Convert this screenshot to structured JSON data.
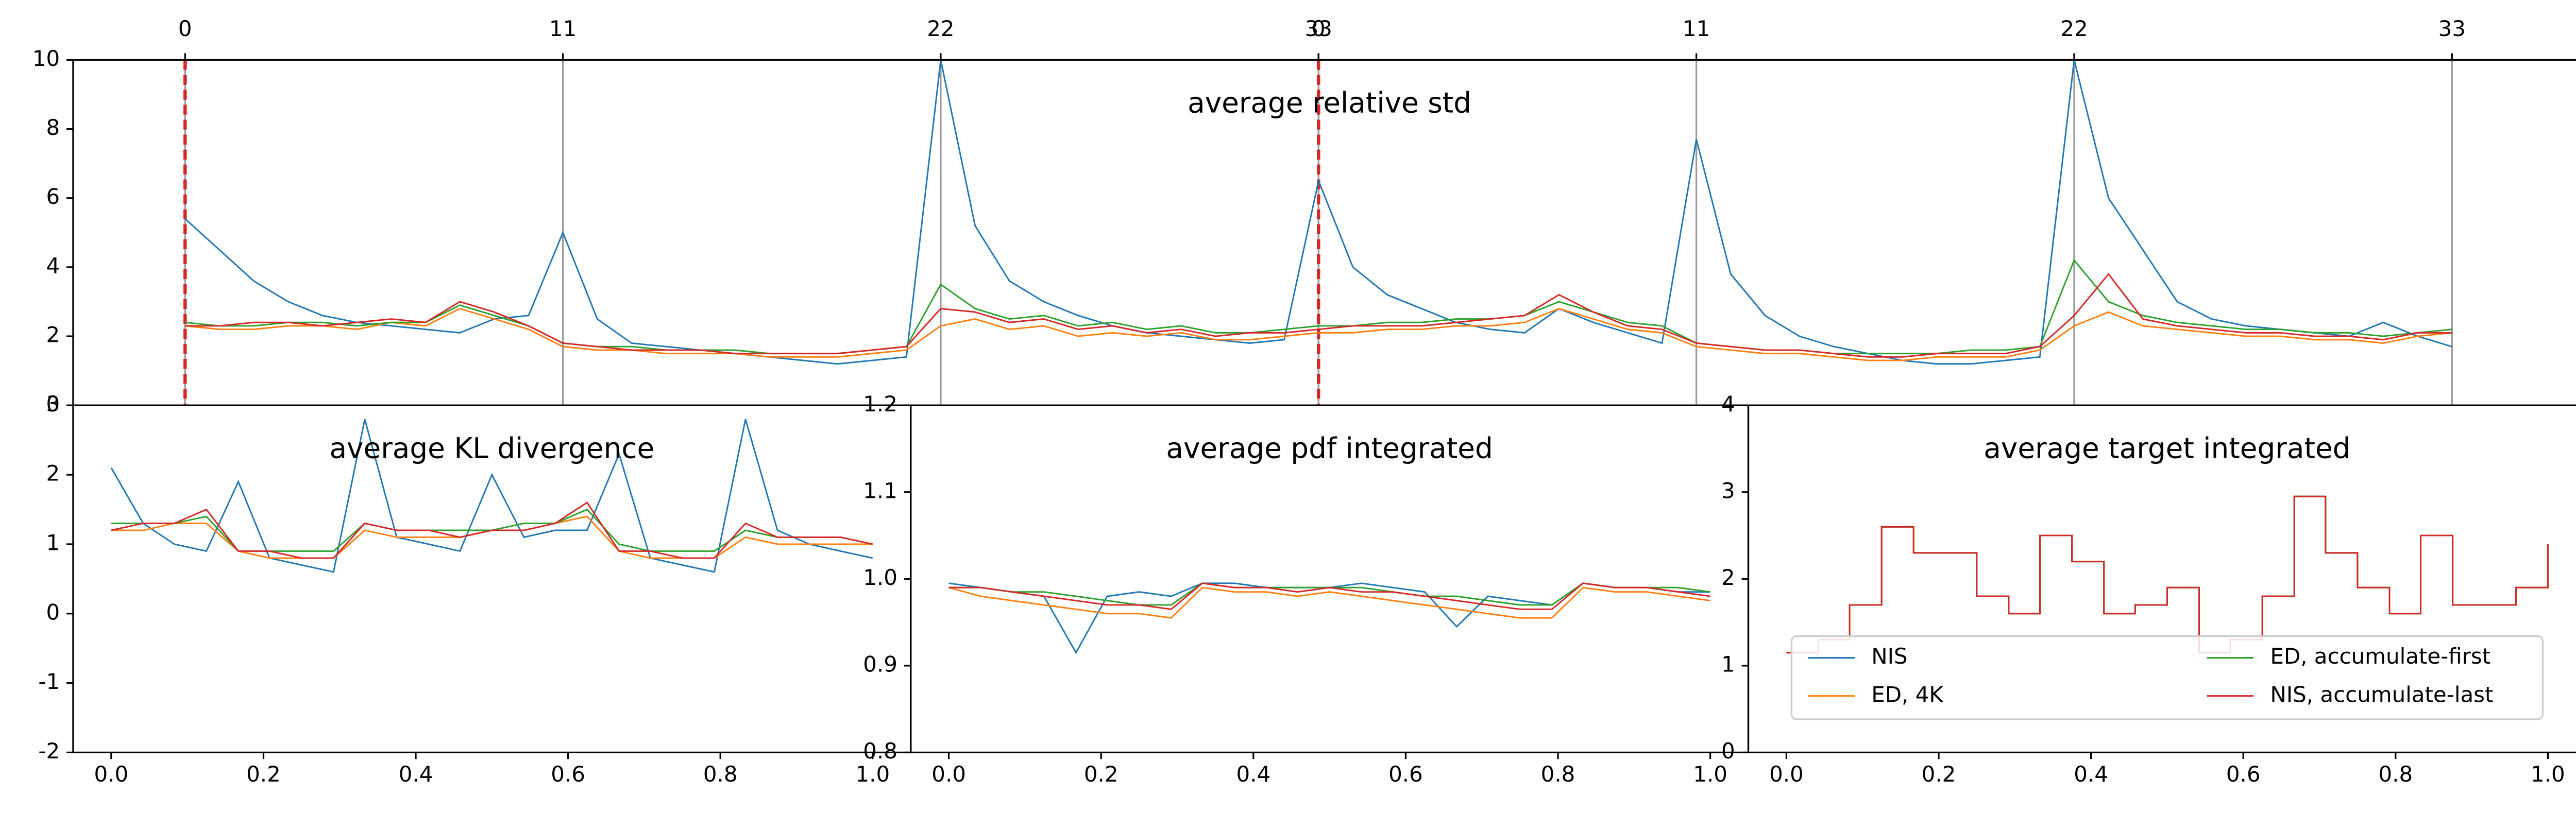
{
  "chart_data": [
    {
      "type": "line",
      "title": "average relative std",
      "xaxis_position": "top",
      "grid": "x",
      "vlines": [
        0,
        33
      ],
      "vline_color": "#d62728",
      "xlim": [
        -3.26,
        69.9
      ],
      "ylim": [
        0,
        10
      ],
      "xticks": [
        0,
        11,
        22,
        33,
        {
          "value": 33,
          "label": "0"
        },
        {
          "value": 44,
          "label": "11"
        },
        {
          "value": 55,
          "label": "22"
        },
        {
          "value": 66,
          "label": "33"
        }
      ],
      "yticks": [
        0,
        2,
        4,
        6,
        8,
        10
      ],
      "x": [
        0,
        1,
        2,
        3,
        4,
        5,
        6,
        7,
        8,
        9,
        10,
        11,
        12,
        13,
        14,
        15,
        16,
        17,
        18,
        19,
        20,
        21,
        22,
        23,
        24,
        25,
        26,
        27,
        28,
        29,
        30,
        31,
        32,
        33,
        34,
        35,
        36,
        37,
        38,
        39,
        40,
        41,
        42,
        43,
        44,
        45,
        46,
        47,
        48,
        49,
        50,
        51,
        52,
        53,
        54,
        55,
        56,
        57,
        58,
        59,
        60,
        61,
        62,
        63,
        64,
        65,
        66
      ],
      "series": [
        {
          "name": "NIS",
          "color": "#1f77b4",
          "values": [
            5.4,
            4.5,
            3.6,
            3.0,
            2.6,
            2.4,
            2.3,
            2.2,
            2.1,
            2.5,
            2.6,
            5.0,
            2.5,
            1.8,
            1.7,
            1.6,
            1.5,
            1.4,
            1.3,
            1.2,
            1.3,
            1.4,
            10,
            5.2,
            3.6,
            3.0,
            2.6,
            2.3,
            2.1,
            2.0,
            1.9,
            1.8,
            1.9,
            6.5,
            4.0,
            3.2,
            2.8,
            2.4,
            2.2,
            2.1,
            2.8,
            2.4,
            2.1,
            1.8,
            7.7,
            3.8,
            2.6,
            2.0,
            1.7,
            1.5,
            1.3,
            1.2,
            1.2,
            1.3,
            1.4,
            10,
            6.0,
            4.5,
            3.0,
            2.5,
            2.3,
            2.2,
            2.1,
            2.0,
            2.4,
            2.0,
            1.7
          ]
        },
        {
          "name": "ED, 4K",
          "color": "#ff7f0e",
          "values": [
            2.3,
            2.2,
            2.2,
            2.3,
            2.3,
            2.2,
            2.4,
            2.3,
            2.8,
            2.5,
            2.2,
            1.7,
            1.6,
            1.6,
            1.5,
            1.5,
            1.5,
            1.4,
            1.4,
            1.4,
            1.5,
            1.6,
            2.3,
            2.5,
            2.2,
            2.3,
            2.0,
            2.1,
            2.0,
            2.1,
            1.9,
            1.9,
            2.0,
            2.1,
            2.1,
            2.2,
            2.2,
            2.3,
            2.3,
            2.4,
            2.8,
            2.5,
            2.2,
            2.1,
            1.7,
            1.6,
            1.5,
            1.5,
            1.4,
            1.3,
            1.3,
            1.4,
            1.4,
            1.4,
            1.6,
            2.3,
            2.7,
            2.3,
            2.2,
            2.1,
            2.0,
            2.0,
            1.9,
            1.9,
            1.8,
            2.0,
            2.1
          ]
        },
        {
          "name": "ED, accumulate-first",
          "color": "#2ca02c",
          "values": [
            2.4,
            2.3,
            2.3,
            2.4,
            2.4,
            2.3,
            2.4,
            2.4,
            2.9,
            2.6,
            2.3,
            1.8,
            1.7,
            1.7,
            1.6,
            1.6,
            1.6,
            1.5,
            1.5,
            1.5,
            1.6,
            1.7,
            3.5,
            2.8,
            2.5,
            2.6,
            2.3,
            2.4,
            2.2,
            2.3,
            2.1,
            2.1,
            2.2,
            2.3,
            2.3,
            2.4,
            2.4,
            2.5,
            2.5,
            2.6,
            3.0,
            2.7,
            2.4,
            2.3,
            1.8,
            1.7,
            1.6,
            1.6,
            1.5,
            1.5,
            1.5,
            1.5,
            1.6,
            1.6,
            1.7,
            4.2,
            3.0,
            2.6,
            2.4,
            2.3,
            2.2,
            2.2,
            2.1,
            2.1,
            2.0,
            2.1,
            2.2
          ]
        },
        {
          "name": "NIS, accumulate-last",
          "color": "#d62728",
          "values": [
            2.3,
            2.3,
            2.4,
            2.4,
            2.3,
            2.4,
            2.5,
            2.4,
            3.0,
            2.7,
            2.3,
            1.8,
            1.7,
            1.6,
            1.6,
            1.6,
            1.5,
            1.5,
            1.5,
            1.5,
            1.6,
            1.7,
            2.8,
            2.7,
            2.4,
            2.5,
            2.2,
            2.3,
            2.1,
            2.2,
            2.0,
            2.1,
            2.1,
            2.2,
            2.3,
            2.3,
            2.3,
            2.4,
            2.5,
            2.6,
            3.2,
            2.7,
            2.3,
            2.2,
            1.8,
            1.7,
            1.6,
            1.6,
            1.5,
            1.4,
            1.4,
            1.5,
            1.5,
            1.5,
            1.7,
            2.6,
            3.8,
            2.5,
            2.3,
            2.2,
            2.1,
            2.1,
            2.0,
            2.0,
            1.9,
            2.1,
            2.1
          ]
        }
      ]
    },
    {
      "type": "line",
      "title": "average KL divergence",
      "xlim": [
        -0.05,
        1.05
      ],
      "ylim": [
        -2,
        3
      ],
      "xticks": [
        {
          "value": 0,
          "label": "0.0"
        },
        0.2,
        0.4,
        0.6,
        0.8,
        {
          "value": 1,
          "label": "1.0"
        }
      ],
      "yticks": [
        -2,
        -1,
        0,
        1,
        2,
        3
      ],
      "x": [
        0,
        0.042,
        0.083,
        0.125,
        0.167,
        0.208,
        0.25,
        0.292,
        0.333,
        0.375,
        0.417,
        0.458,
        0.5,
        0.542,
        0.583,
        0.625,
        0.667,
        0.708,
        0.75,
        0.792,
        0.833,
        0.875,
        0.917,
        0.958,
        1.0
      ],
      "series": [
        {
          "name": "NIS",
          "color": "#1f77b4",
          "values": [
            2.1,
            1.3,
            1.0,
            0.9,
            1.9,
            0.8,
            0.7,
            0.6,
            2.8,
            1.1,
            1.0,
            0.9,
            2.0,
            1.1,
            1.2,
            1.2,
            2.3,
            0.8,
            0.7,
            0.6,
            2.8,
            1.2,
            1.0,
            0.9,
            0.8
          ]
        },
        {
          "name": "ED, 4K",
          "color": "#ff7f0e",
          "values": [
            1.2,
            1.2,
            1.3,
            1.3,
            0.9,
            0.8,
            0.8,
            0.8,
            1.2,
            1.1,
            1.1,
            1.1,
            1.2,
            1.2,
            1.3,
            1.4,
            0.9,
            0.8,
            0.8,
            0.8,
            1.1,
            1.0,
            1.0,
            1.0,
            1.0
          ]
        },
        {
          "name": "ED, accumulate-first",
          "color": "#2ca02c",
          "values": [
            1.3,
            1.3,
            1.3,
            1.4,
            0.9,
            0.9,
            0.9,
            0.9,
            1.3,
            1.2,
            1.2,
            1.2,
            1.2,
            1.3,
            1.3,
            1.5,
            1.0,
            0.9,
            0.9,
            0.9,
            1.2,
            1.1,
            1.1,
            1.1,
            1.0
          ]
        },
        {
          "name": "NIS, accumulate-last",
          "color": "#d62728",
          "values": [
            1.2,
            1.3,
            1.3,
            1.5,
            0.9,
            0.9,
            0.8,
            0.8,
            1.3,
            1.2,
            1.2,
            1.1,
            1.2,
            1.2,
            1.3,
            1.6,
            0.9,
            0.9,
            0.8,
            0.8,
            1.3,
            1.1,
            1.1,
            1.1,
            1.0
          ]
        }
      ]
    },
    {
      "type": "line",
      "title": "average pdf integrated",
      "xlim": [
        -0.05,
        1.05
      ],
      "ylim": [
        0.8,
        1.2
      ],
      "xticks": [
        {
          "value": 0,
          "label": "0.0"
        },
        0.2,
        0.4,
        0.6,
        0.8,
        {
          "value": 1,
          "label": "1.0"
        }
      ],
      "yticks": [
        0.8,
        0.9,
        {
          "value": 1,
          "label": "1.0"
        },
        1.1,
        1.2
      ],
      "x": [
        0,
        0.042,
        0.083,
        0.125,
        0.167,
        0.208,
        0.25,
        0.292,
        0.333,
        0.375,
        0.417,
        0.458,
        0.5,
        0.542,
        0.583,
        0.625,
        0.667,
        0.708,
        0.75,
        0.792,
        0.833,
        0.875,
        0.917,
        0.958,
        1.0
      ],
      "series": [
        {
          "name": "NIS",
          "color": "#1f77b4",
          "values": [
            0.995,
            0.99,
            0.985,
            0.98,
            0.915,
            0.98,
            0.985,
            0.98,
            0.995,
            0.995,
            0.99,
            0.99,
            0.99,
            0.995,
            0.99,
            0.985,
            0.945,
            0.98,
            0.975,
            0.97,
            0.995,
            0.99,
            0.99,
            0.985,
            0.985
          ]
        },
        {
          "name": "ED, 4K",
          "color": "#ff7f0e",
          "values": [
            0.99,
            0.98,
            0.975,
            0.97,
            0.965,
            0.96,
            0.96,
            0.955,
            0.99,
            0.985,
            0.985,
            0.98,
            0.985,
            0.98,
            0.975,
            0.97,
            0.965,
            0.96,
            0.955,
            0.955,
            0.99,
            0.985,
            0.985,
            0.98,
            0.975
          ]
        },
        {
          "name": "ED, accumulate-first",
          "color": "#2ca02c",
          "values": [
            0.99,
            0.99,
            0.985,
            0.985,
            0.98,
            0.975,
            0.97,
            0.97,
            0.995,
            0.99,
            0.99,
            0.99,
            0.99,
            0.99,
            0.985,
            0.98,
            0.98,
            0.975,
            0.97,
            0.97,
            0.995,
            0.99,
            0.99,
            0.99,
            0.985
          ]
        },
        {
          "name": "NIS, accumulate-last",
          "color": "#d62728",
          "values": [
            0.99,
            0.99,
            0.985,
            0.98,
            0.975,
            0.97,
            0.97,
            0.965,
            0.995,
            0.99,
            0.99,
            0.985,
            0.99,
            0.985,
            0.985,
            0.98,
            0.975,
            0.97,
            0.965,
            0.965,
            0.995,
            0.99,
            0.99,
            0.985,
            0.98
          ]
        }
      ]
    },
    {
      "type": "line",
      "title": "average target integrated",
      "drawstyle": "steps-post",
      "legend": "lower center",
      "legend_columns": 2,
      "xlim": [
        -0.05,
        1.05
      ],
      "ylim": [
        0,
        4
      ],
      "xticks": [
        {
          "value": 0,
          "label": "0.0"
        },
        0.2,
        0.4,
        0.6,
        0.8,
        {
          "value": 1,
          "label": "1.0"
        }
      ],
      "yticks": [
        0,
        1,
        2,
        3,
        4
      ],
      "x": [
        0,
        0.042,
        0.083,
        0.125,
        0.167,
        0.208,
        0.25,
        0.292,
        0.333,
        0.375,
        0.417,
        0.458,
        0.5,
        0.542,
        0.583,
        0.625,
        0.667,
        0.708,
        0.75,
        0.792,
        0.833,
        0.875,
        0.917,
        0.958,
        1.0
      ],
      "series": [
        {
          "name": "NIS",
          "color": "#1f77b4",
          "values": [
            1.15,
            1.3,
            1.7,
            2.6,
            2.3,
            2.3,
            1.8,
            1.6,
            2.5,
            2.2,
            1.6,
            1.7,
            1.9,
            1.15,
            1.3,
            1.8,
            2.95,
            2.3,
            1.9,
            1.6,
            2.5,
            1.7,
            1.7,
            1.9,
            2.4
          ]
        },
        {
          "name": "ED, 4K",
          "color": "#ff7f0e",
          "values": [
            1.15,
            1.3,
            1.7,
            2.6,
            2.3,
            2.3,
            1.8,
            1.6,
            2.5,
            2.2,
            1.6,
            1.7,
            1.9,
            1.15,
            1.3,
            1.8,
            2.95,
            2.3,
            1.9,
            1.6,
            2.5,
            1.7,
            1.7,
            1.9,
            2.4
          ]
        },
        {
          "name": "ED, accumulate-first",
          "color": "#2ca02c",
          "values": [
            1.15,
            1.3,
            1.7,
            2.6,
            2.3,
            2.3,
            1.8,
            1.6,
            2.5,
            2.2,
            1.6,
            1.7,
            1.9,
            1.15,
            1.3,
            1.8,
            2.95,
            2.3,
            1.9,
            1.6,
            2.5,
            1.7,
            1.7,
            1.9,
            2.4
          ]
        },
        {
          "name": "NIS, accumulate-last",
          "color": "#d62728",
          "values": [
            1.15,
            1.3,
            1.7,
            2.6,
            2.3,
            2.3,
            1.8,
            1.6,
            2.5,
            2.2,
            1.6,
            1.7,
            1.9,
            1.15,
            1.3,
            1.8,
            2.95,
            2.3,
            1.9,
            1.6,
            2.5,
            1.7,
            1.7,
            1.9,
            2.4
          ]
        }
      ]
    }
  ]
}
